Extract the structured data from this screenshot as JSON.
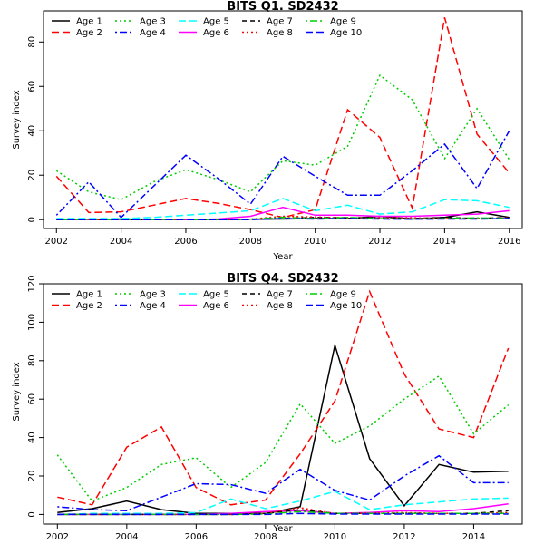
{
  "chart_data": [
    {
      "type": "line",
      "title": "BITS Q1. SD2432",
      "xlabel": "Year",
      "ylabel": "Survey index",
      "xlim": [
        2001.6,
        2016.4
      ],
      "ylim": [
        -4,
        94
      ],
      "xticks": [
        2002,
        2004,
        2006,
        2008,
        2010,
        2012,
        2014,
        2016
      ],
      "yticks": [
        0,
        20,
        40,
        60,
        80
      ],
      "legend": "top-left",
      "x": [
        2002,
        2003,
        2004,
        2005,
        2006,
        2007,
        2008,
        2009,
        2010,
        2011,
        2012,
        2013,
        2014,
        2015,
        2016
      ],
      "series": [
        {
          "name": "Age 1",
          "color": "#000000",
          "dash": "solid",
          "values": [
            0,
            0,
            0.3,
            0.1,
            0,
            0,
            0.2,
            0.3,
            0.5,
            0.5,
            1.5,
            0.3,
            1,
            3.5,
            1
          ]
        },
        {
          "name": "Age 2",
          "color": "#ff0000",
          "dash": "longdash",
          "values": [
            19.5,
            3.2,
            3.5,
            6.5,
            9.5,
            7.3,
            4.5,
            1,
            4.5,
            49.5,
            37,
            5.2,
            91,
            38.5,
            21
          ]
        },
        {
          "name": "Age 3",
          "color": "#00cd00",
          "dash": "dotted",
          "values": [
            22,
            12.5,
            9,
            17,
            22.5,
            18,
            12.5,
            26.5,
            24.5,
            33,
            65,
            54,
            27.5,
            50,
            27
          ]
        },
        {
          "name": "Age 4",
          "color": "#0000ff",
          "dash": "dotdash",
          "values": [
            2,
            17,
            1,
            15,
            29,
            18.5,
            7,
            28.5,
            19.5,
            11,
            11,
            22,
            34,
            14,
            40
          ]
        },
        {
          "name": "Age 5",
          "color": "#00ffff",
          "dash": "longdash",
          "values": [
            0.5,
            0.5,
            0.5,
            1,
            2,
            3,
            4,
            9.5,
            4,
            6.5,
            2.5,
            3.5,
            9,
            8.5,
            5.5
          ]
        },
        {
          "name": "Age 6",
          "color": "#ff00ff",
          "dash": "solid",
          "values": [
            0,
            0,
            0,
            0,
            0,
            0.3,
            1.5,
            5.5,
            2,
            2,
            1.5,
            1.5,
            2,
            2.5,
            4
          ]
        },
        {
          "name": "Age 7",
          "color": "#000000",
          "dash": "dashed",
          "values": [
            0,
            0,
            0,
            0,
            0,
            0,
            0.1,
            0.5,
            1,
            0.8,
            0.5,
            0.5,
            1,
            0.5,
            1
          ]
        },
        {
          "name": "Age 8",
          "color": "#ff0000",
          "dash": "dotted",
          "values": [
            0,
            0,
            0,
            0,
            0,
            0,
            0.2,
            1.5,
            1.2,
            0.8,
            0.8,
            0.8,
            0.5,
            0.5,
            0.8
          ]
        },
        {
          "name": "Age 9",
          "color": "#00cd00",
          "dash": "dotdash",
          "values": [
            0,
            0,
            0,
            0,
            0,
            0,
            0.2,
            1,
            0.5,
            1,
            0.5,
            0.3,
            0.5,
            0.8,
            0.5
          ]
        },
        {
          "name": "Age 10",
          "color": "#0000ff",
          "dash": "longdash",
          "values": [
            0,
            0,
            0,
            0,
            0,
            0,
            0,
            0.5,
            0.3,
            0.5,
            0.3,
            0.2,
            0.3,
            0.3,
            0.5
          ]
        }
      ]
    },
    {
      "type": "line",
      "title": "BITS Q4. SD2432",
      "xlabel": "Year",
      "ylabel": "Survey index",
      "xlim": [
        2001.6,
        2015.4
      ],
      "ylim": [
        -5,
        120
      ],
      "xticks": [
        2002,
        2004,
        2006,
        2008,
        2010,
        2012,
        2014
      ],
      "yticks": [
        0,
        20,
        40,
        60,
        80,
        100,
        120
      ],
      "legend": "top-left",
      "x": [
        2002,
        2003,
        2004,
        2005,
        2006,
        2007,
        2008,
        2009,
        2010,
        2011,
        2012,
        2013,
        2014,
        2015
      ],
      "series": [
        {
          "name": "Age 1",
          "color": "#000000",
          "dash": "solid",
          "values": [
            1,
            3,
            7,
            2.5,
            0.5,
            0.5,
            0.5,
            4,
            88,
            29,
            4.5,
            26,
            22,
            22.5
          ]
        },
        {
          "name": "Age 2",
          "color": "#ff0000",
          "dash": "longdash",
          "values": [
            9,
            5,
            35,
            45.5,
            14,
            5,
            7.5,
            31.5,
            59,
            116,
            73,
            44.5,
            40,
            86.5
          ]
        },
        {
          "name": "Age 3",
          "color": "#00cd00",
          "dash": "dotted",
          "values": [
            31,
            7,
            14,
            26,
            29.5,
            14,
            27,
            57.5,
            37,
            46,
            60,
            72,
            42,
            57
          ]
        },
        {
          "name": "Age 4",
          "color": "#0000ff",
          "dash": "dotdash",
          "values": [
            4,
            2.5,
            2,
            9,
            16,
            15.5,
            11,
            23.5,
            12.5,
            7.5,
            20,
            30.5,
            16.5,
            16.5
          ]
        },
        {
          "name": "Age 5",
          "color": "#00ffff",
          "dash": "longdash",
          "values": [
            0,
            0.5,
            0.5,
            0.5,
            1,
            8,
            3,
            7,
            12,
            2.5,
            5,
            6.5,
            8,
            8.5
          ]
        },
        {
          "name": "Age 6",
          "color": "#ff00ff",
          "dash": "solid",
          "values": [
            0,
            0,
            0,
            0,
            0,
            0.5,
            1.5,
            2,
            0.5,
            1,
            2,
            1.5,
            3,
            5.5
          ]
        },
        {
          "name": "Age 7",
          "color": "#000000",
          "dash": "dashed",
          "values": [
            0,
            0,
            0,
            0,
            0,
            0,
            0.5,
            2.5,
            0.5,
            0.5,
            0.5,
            0.5,
            0.5,
            2
          ]
        },
        {
          "name": "Age 8",
          "color": "#ff0000",
          "dash": "dotted",
          "values": [
            0,
            0,
            0,
            0,
            0,
            0,
            0.5,
            3.5,
            0.5,
            0.5,
            1,
            0.5,
            0.5,
            1
          ]
        },
        {
          "name": "Age 9",
          "color": "#00cd00",
          "dash": "dotdash",
          "values": [
            0,
            0,
            0,
            0,
            0,
            0,
            0.2,
            1.5,
            0.5,
            0.5,
            0.5,
            0.5,
            0.5,
            0.5
          ]
        },
        {
          "name": "Age 10",
          "color": "#0000ff",
          "dash": "longdash",
          "values": [
            0,
            0,
            0,
            0,
            0,
            0,
            0,
            0.5,
            0.2,
            0.2,
            0.2,
            0.2,
            0.2,
            0.2
          ]
        }
      ]
    }
  ]
}
